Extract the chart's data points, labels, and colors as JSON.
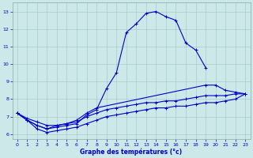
{
  "xlabel": "Graphe des températures (°c)",
  "bg_color": "#cce8e8",
  "grid_color": "#aacccc",
  "line_color": "#0000cc",
  "marker": "+",
  "markersize": 3,
  "linewidth": 0.8,
  "ylim": [
    5.7,
    13.5
  ],
  "yticks": [
    6,
    7,
    8,
    9,
    10,
    11,
    12,
    13
  ],
  "xticks": [
    0,
    1,
    2,
    3,
    4,
    5,
    6,
    7,
    8,
    9,
    10,
    11,
    12,
    13,
    14,
    15,
    16,
    17,
    18,
    19,
    20,
    21,
    22,
    23
  ],
  "curve_top": {
    "x": [
      0,
      1,
      2,
      3,
      4,
      5,
      6,
      7,
      8,
      9,
      10,
      11,
      12,
      13,
      14,
      15,
      16,
      17,
      18,
      19
    ],
    "y": [
      7.2,
      6.8,
      6.5,
      6.3,
      6.4,
      6.5,
      6.6,
      7.1,
      7.4,
      8.6,
      9.5,
      11.8,
      12.3,
      12.9,
      13.0,
      12.7,
      12.5,
      11.2,
      10.8,
      9.8
    ]
  },
  "curve_mid1": {
    "x": [
      0,
      1,
      2,
      3,
      4,
      5,
      6,
      7,
      8,
      19,
      20,
      21,
      22,
      23
    ],
    "y": [
      7.2,
      6.8,
      6.5,
      6.3,
      6.5,
      6.6,
      6.8,
      7.2,
      7.5,
      8.8,
      8.8,
      8.5,
      8.4,
      8.3
    ]
  },
  "curve_mid2": {
    "x": [
      0,
      1,
      2,
      3,
      4,
      5,
      6,
      7,
      8,
      9,
      10,
      11,
      12,
      13,
      14,
      15,
      16,
      17,
      18,
      19,
      20,
      21,
      22,
      23
    ],
    "y": [
      7.2,
      6.9,
      6.7,
      6.5,
      6.5,
      6.6,
      6.7,
      7.0,
      7.2,
      7.4,
      7.5,
      7.6,
      7.7,
      7.8,
      7.8,
      7.9,
      7.9,
      8.0,
      8.1,
      8.2,
      8.2,
      8.2,
      8.3,
      8.3
    ]
  },
  "curve_bot": {
    "x": [
      0,
      1,
      2,
      3,
      4,
      5,
      6,
      7,
      8,
      9,
      10,
      11,
      12,
      13,
      14,
      15,
      16,
      17,
      18,
      19,
      20,
      21,
      22,
      23
    ],
    "y": [
      7.2,
      6.8,
      6.3,
      6.1,
      6.2,
      6.3,
      6.4,
      6.6,
      6.8,
      7.0,
      7.1,
      7.2,
      7.3,
      7.4,
      7.5,
      7.5,
      7.6,
      7.6,
      7.7,
      7.8,
      7.8,
      7.9,
      8.0,
      8.3
    ]
  }
}
